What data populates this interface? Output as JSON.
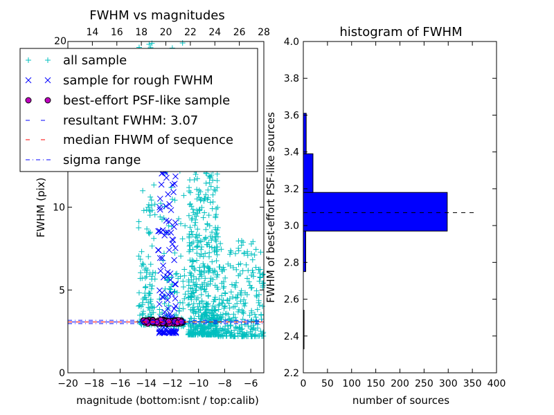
{
  "chart_data": [
    {
      "type": "scatter",
      "title": "FWHM vs magnitudes",
      "xlabel": "magnitude (bottom:isnt / top:calib)",
      "ylabel": "FWHM (pix)",
      "xlim": [
        -20,
        -5
      ],
      "ylim": [
        0,
        20
      ],
      "x_ticks": [
        "−20",
        "−18",
        "−16",
        "−14",
        "−12",
        "−10",
        "−8",
        "−6"
      ],
      "x_tick_values": [
        -20,
        -18,
        -16,
        -14,
        -12,
        -10,
        -8,
        -6
      ],
      "y_ticks": [
        "0",
        "5",
        "10"
      ],
      "y_tick_values": [
        0,
        5,
        10
      ],
      "top_xlim": [
        12,
        28
      ],
      "top_x_ticks": [
        "14",
        "16",
        "18",
        "20",
        "22",
        "24",
        "26",
        "28"
      ],
      "top_x_tick_values": [
        14,
        16,
        18,
        20,
        22,
        24,
        26,
        28
      ],
      "top_y_label": "20",
      "legend": {
        "position": "upper-left",
        "entries": [
          {
            "label": "all sample",
            "marker": "+",
            "color": "#00bfbf"
          },
          {
            "label": "sample for rough FWHM",
            "marker": "x",
            "color": "#0000ff"
          },
          {
            "label": "best-effort PSF-like sample",
            "marker": "o",
            "color": "#bf00bf"
          },
          {
            "label": "resultant FWHM: 3.07",
            "marker": "dashed",
            "color": "#0000ff"
          },
          {
            "label": "median FHWM of sequence",
            "marker": "dashed",
            "color": "#ff0000"
          },
          {
            "label": "sigma range",
            "marker": "dashdot",
            "color": "#0000ff"
          }
        ]
      },
      "resultant_fwhm": 3.07,
      "sigma_range": [
        2.97,
        3.17
      ],
      "series": [
        {
          "name": "all sample",
          "marker": "+",
          "color": "#00bfbf",
          "clusters": [
            {
              "x_range": [
                -14.6,
                -13.3
              ],
              "y_range": [
                2.9,
                20
              ],
              "count": 160
            },
            {
              "x_range": [
                -13.0,
                -11.0
              ],
              "y_range": [
                2.8,
                20
              ],
              "count": 140
            },
            {
              "x_range": [
                -10.8,
                -8.5
              ],
              "y_range": [
                2.3,
                13
              ],
              "count": 520
            },
            {
              "x_range": [
                -8.5,
                -5.0
              ],
              "y_range": [
                2.2,
                8
              ],
              "count": 260
            }
          ]
        },
        {
          "name": "sample for rough FWHM",
          "marker": "x",
          "color": "#0000ff",
          "clusters": [
            {
              "x_range": [
                -13.1,
                -11.7
              ],
              "y_range": [
                2.4,
                13
              ],
              "count": 110
            }
          ]
        },
        {
          "name": "best-effort PSF-like sample",
          "marker": "o",
          "color": "#bf00bf",
          "clusters": [
            {
              "x_range": [
                -14.3,
                -11.2
              ],
              "y_range": [
                2.95,
                3.2
              ],
              "count": 90
            }
          ]
        }
      ]
    },
    {
      "type": "bar",
      "orientation": "horizontal",
      "title": "histogram of FWHM",
      "xlabel": "number of sources",
      "ylabel": "FWHM of best-effort PSF-like sources",
      "xlim": [
        0,
        400
      ],
      "ylim": [
        2.2,
        4.0
      ],
      "x_ticks": [
        "0",
        "50",
        "100",
        "150",
        "200",
        "250",
        "300",
        "350",
        "400"
      ],
      "x_tick_values": [
        0,
        50,
        100,
        150,
        200,
        250,
        300,
        350,
        400
      ],
      "y_ticks": [
        "2.2",
        "2.4",
        "2.6",
        "2.8",
        "3.0",
        "3.2",
        "3.4",
        "3.6",
        "3.8",
        "4.0"
      ],
      "y_tick_values": [
        2.2,
        2.4,
        2.6,
        2.8,
        3.0,
        3.2,
        3.4,
        3.6,
        3.8,
        4.0
      ],
      "bar_color": "#0000ff",
      "bins": [
        {
          "y0": 2.33,
          "y1": 2.54,
          "count": 1
        },
        {
          "y0": 2.54,
          "y1": 2.75,
          "count": 0
        },
        {
          "y0": 2.75,
          "y1": 2.97,
          "count": 5
        },
        {
          "y0": 2.97,
          "y1": 3.18,
          "count": 298
        },
        {
          "y0": 3.18,
          "y1": 3.39,
          "count": 20
        },
        {
          "y0": 3.39,
          "y1": 3.61,
          "count": 6
        }
      ],
      "median_line": {
        "y": 3.07,
        "x_range": [
          0,
          360
        ]
      }
    }
  ]
}
